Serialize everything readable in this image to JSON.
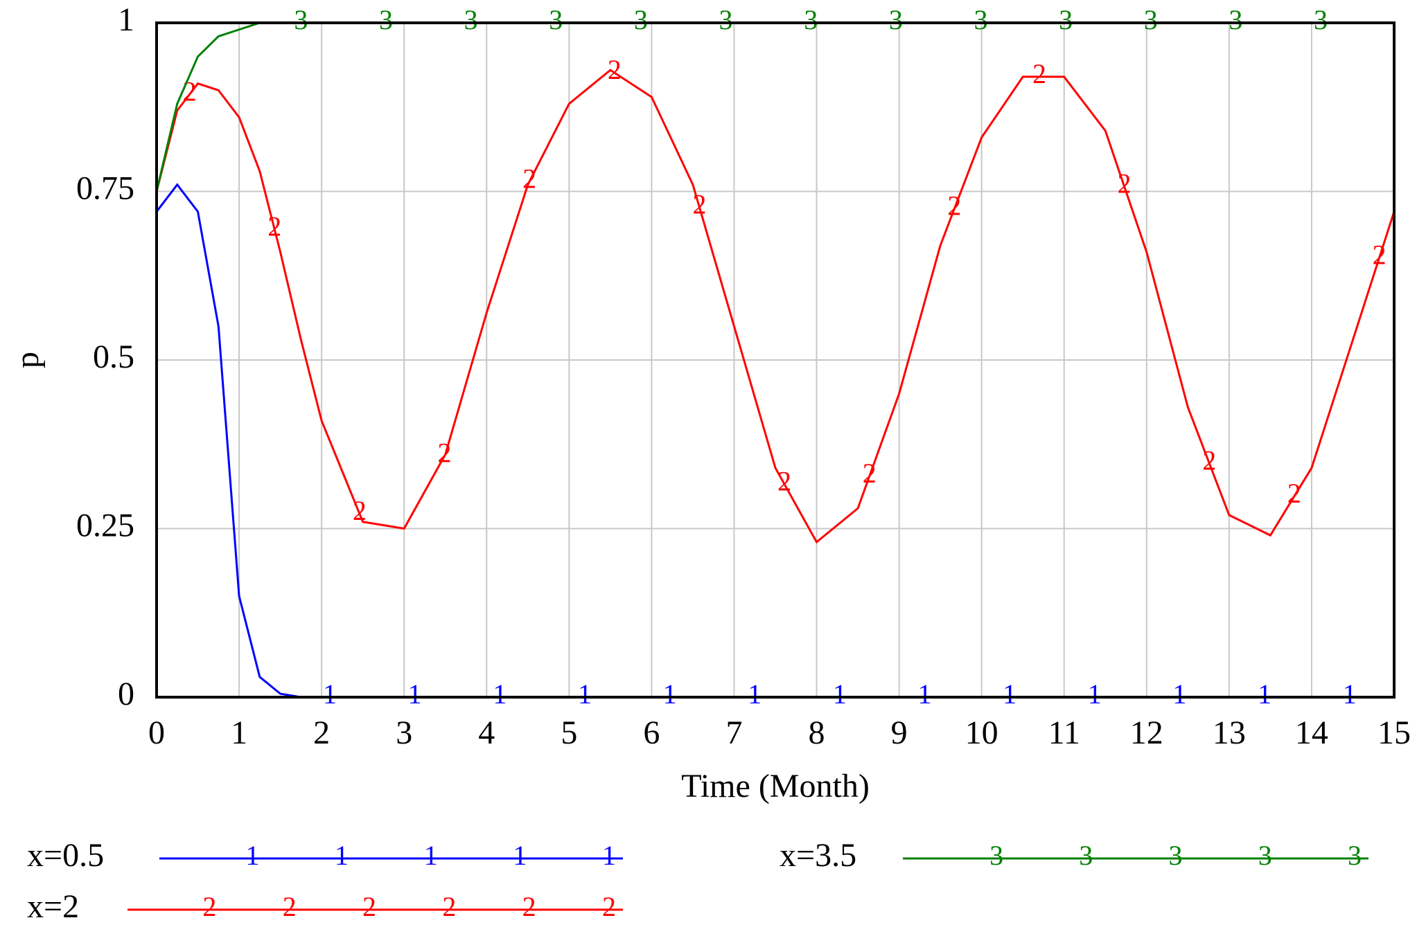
{
  "chart_data": {
    "type": "line",
    "x_label": "Time (Month)",
    "y_label": "p",
    "x": [
      0,
      0.25,
      0.5,
      0.75,
      1,
      1.25,
      1.5,
      1.75,
      2,
      2.5,
      3,
      3.5,
      4,
      4.5,
      5,
      5.5,
      6,
      6.5,
      7,
      7.5,
      8,
      8.5,
      9,
      9.5,
      10,
      10.5,
      11,
      11.5,
      12,
      12.5,
      13,
      13.5,
      14,
      14.5,
      15
    ],
    "series": [
      {
        "name": "x=0.5",
        "marker": "1",
        "color": "#0000ff",
        "values": [
          0.72,
          0.76,
          0.72,
          0.55,
          0.15,
          0.03,
          0.005,
          0,
          0,
          0,
          0,
          0,
          0,
          0,
          0,
          0,
          0,
          0,
          0,
          0,
          0,
          0,
          0,
          0,
          0,
          0,
          0,
          0,
          0,
          0,
          0,
          0,
          0,
          0,
          0
        ]
      },
      {
        "name": "x=2",
        "marker": "2",
        "color": "#ff0000",
        "values": [
          0.75,
          0.87,
          0.91,
          0.9,
          0.86,
          0.78,
          0.66,
          0.53,
          0.41,
          0.26,
          0.25,
          0.36,
          0.57,
          0.76,
          0.88,
          0.93,
          0.89,
          0.76,
          0.55,
          0.34,
          0.23,
          0.28,
          0.45,
          0.67,
          0.83,
          0.92,
          0.92,
          0.84,
          0.66,
          0.43,
          0.27,
          0.24,
          0.34,
          0.53,
          0.72
        ]
      },
      {
        "name": "x=3.5",
        "marker": "3",
        "color": "#008000",
        "values": [
          0.75,
          0.88,
          0.95,
          0.98,
          0.99,
          1,
          1,
          1,
          1,
          1,
          1,
          1,
          1,
          1,
          1,
          1,
          1,
          1,
          1,
          1,
          1,
          1,
          1,
          1,
          1,
          1,
          1,
          1,
          1,
          1,
          1,
          1,
          1,
          1,
          1
        ]
      }
    ],
    "xlim": [
      0,
      15
    ],
    "xticks": [
      0,
      1,
      2,
      3,
      4,
      5,
      6,
      7,
      8,
      9,
      10,
      11,
      12,
      13,
      14,
      15
    ],
    "ylim": [
      0,
      1
    ],
    "yticks": [
      0,
      0.25,
      0.5,
      0.75,
      1
    ],
    "grid": true
  }
}
